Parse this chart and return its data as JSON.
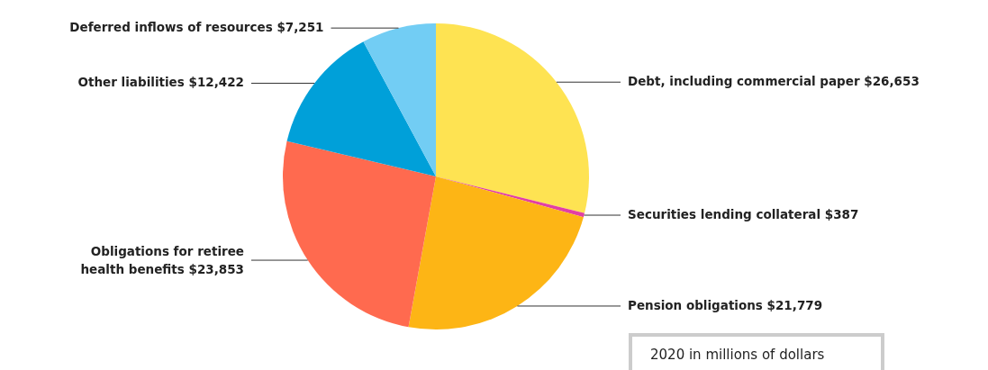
{
  "chart_data": {
    "type": "pie",
    "categories": [
      "Debt, including commercial paper",
      "Securities lending collateral",
      "Pension obligations",
      "Obligations for retiree health benefits",
      "Other liabilities",
      "Deferred inflows of resources"
    ],
    "values": [
      26653,
      387,
      21779,
      23853,
      12422,
      7251
    ],
    "value_labels": [
      "$26,653",
      "$387",
      "$21,779",
      "$23,853",
      "$12,422",
      "$7,251"
    ],
    "colors": [
      "#fee352",
      "#e23fa4",
      "#fdb515",
      "#ff6a4f",
      "#00a0d9",
      "#72cdf4"
    ],
    "annotations": [
      "2020  in millions of dollars"
    ]
  }
}
